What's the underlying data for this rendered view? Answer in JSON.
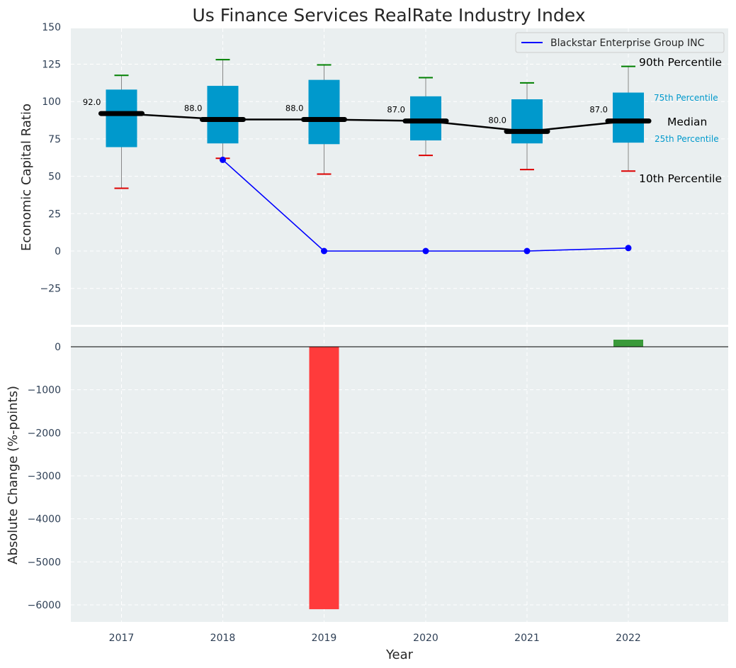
{
  "chart_data": [
    {
      "type": "box",
      "title": "Us Finance Services RealRate Industry Index",
      "ylabel": "Economic Capital Ratio",
      "ylim": [
        -50,
        150
      ],
      "yticks": [
        150,
        125,
        100,
        75,
        50,
        25,
        0,
        -25
      ],
      "ytick_labels": [
        "150",
        "125",
        "100",
        "75",
        "50",
        "25",
        "0",
        "−25"
      ],
      "categories": [
        "2017",
        "2018",
        "2019",
        "2020",
        "2021",
        "2022"
      ],
      "p10": [
        42,
        62,
        51.5,
        64,
        54.5,
        53.5
      ],
      "p25": [
        69.5,
        72,
        71.5,
        74,
        72,
        72.5
      ],
      "median": [
        92,
        88,
        88,
        87,
        80,
        87
      ],
      "p75": [
        108,
        110.5,
        114.5,
        103.5,
        101.5,
        106
      ],
      "p90": [
        117.5,
        128,
        124.5,
        116,
        112.5,
        123.5
      ],
      "median_labels": [
        "92.0",
        "88.0",
        "88.0",
        "87.0",
        "80.0",
        "87.0"
      ],
      "series": [
        {
          "name": "Blackstar Enterprise Group INC",
          "x": [
            "2018",
            "2019",
            "2020",
            "2021",
            "2022"
          ],
          "values": [
            61,
            0,
            0,
            0,
            2
          ],
          "color": "#0000ff"
        }
      ],
      "legend_position": "top-right",
      "annotations": {
        "p90": "90th Percentile",
        "p75": "75th Percentile",
        "median": "Median",
        "p25": "25th Percentile",
        "p10": "10th Percentile"
      },
      "grid": true
    },
    {
      "type": "bar",
      "ylabel": "Absolute Change (%-points)",
      "xlabel": "Year",
      "ylim": [
        -6400,
        300
      ],
      "yticks": [
        0,
        -1000,
        -2000,
        -3000,
        -4000,
        -5000,
        -6000
      ],
      "ytick_labels": [
        "0",
        "−1000",
        "−2000",
        "−3000",
        "−4000",
        "−5000",
        "−6000"
      ],
      "categories": [
        "2017",
        "2018",
        "2019",
        "2020",
        "2021",
        "2022"
      ],
      "values": [
        null,
        null,
        -6100,
        0,
        0,
        165
      ],
      "grid": true
    }
  ],
  "colors": {
    "panel_bg": "#eaeff0",
    "box": "#0099cc",
    "median_line": "#000000",
    "p90_cap": "#008000",
    "p10_cap": "#dd0000",
    "series": "#0000ff",
    "bar_negative": "#ff3b3b",
    "bar_positive": "#3a9a3a",
    "ann_small": "#0099cc"
  }
}
